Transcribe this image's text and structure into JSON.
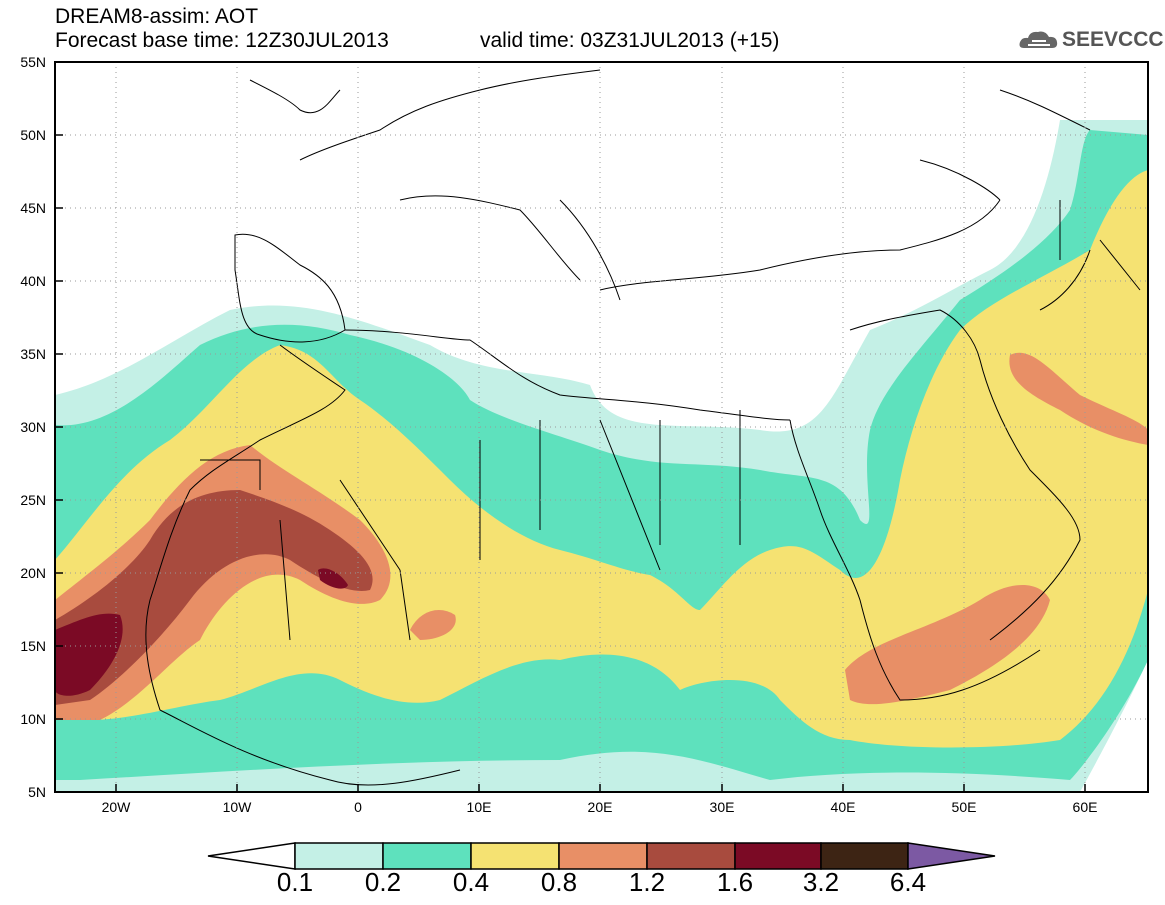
{
  "header": {
    "title_line1": "DREAM8-assim: AOT",
    "title_line2": "Forecast base time: 12Z30JUL2013",
    "valid_time": "valid time: 03Z31JUL2013 (+15)",
    "logo_text": "SEEVCCC"
  },
  "map": {
    "lat_labels": [
      "55N",
      "50N",
      "45N",
      "40N",
      "35N",
      "30N",
      "25N",
      "20N",
      "15N",
      "10N",
      "5N"
    ],
    "lon_labels": [
      "20W",
      "10W",
      "0",
      "10E",
      "20E",
      "30E",
      "40E",
      "50E",
      "60E"
    ],
    "extent": {
      "lon_min": -25,
      "lon_max": 65,
      "lat_min": 5,
      "lat_max": 55
    },
    "gridlines": "dotted"
  },
  "colorbar": {
    "labels": [
      "0.1",
      "0.2",
      "0.4",
      "0.8",
      "1.2",
      "1.6",
      "3.2",
      "6.4"
    ],
    "colors": [
      "#ffffff",
      "#c4f0e6",
      "#5ee1bd",
      "#f5e272",
      "#e88f66",
      "#a84b3e",
      "#7b0a25",
      "#3d2414",
      "#7c59a3"
    ]
  }
}
